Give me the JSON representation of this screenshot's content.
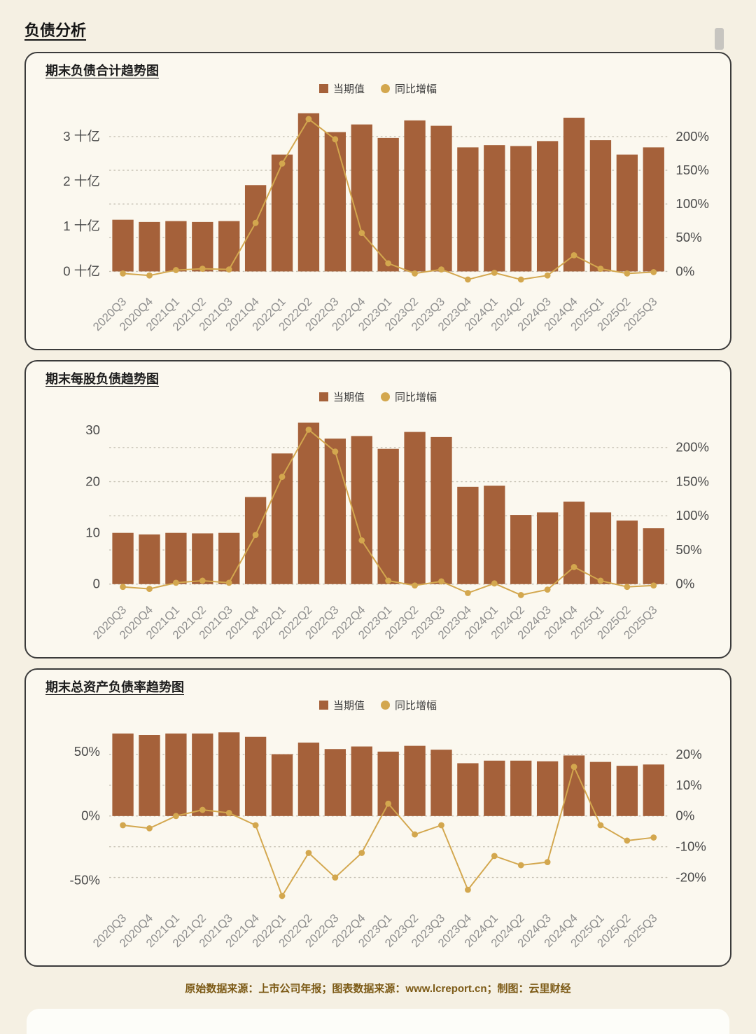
{
  "page": {
    "title": "负债分析",
    "footer": "原始数据来源：上市公司年报；图表数据来源：www.lcreport.cn；制图：云里财经"
  },
  "colors": {
    "bar": "#a5613a",
    "line": "#d3a74e",
    "grid": "#c6c1b4",
    "axis_text": "#4a4a4a",
    "category_text": "#8f8f8f",
    "page_bg": "#f5f0e3",
    "panel_bg": "#fbf8ef",
    "panel_border": "#3b3b3b"
  },
  "chart_data": [
    {
      "type": "bar",
      "subtype": "bar+line-dual-axis",
      "title": "期末负债合计趋势图",
      "grid": "dotted-horizontal",
      "legend_position": "top-center",
      "categories": [
        "2020Q3",
        "2020Q4",
        "2021Q1",
        "2021Q2",
        "2021Q3",
        "2021Q4",
        "2022Q1",
        "2022Q2",
        "2022Q3",
        "2022Q4",
        "2023Q1",
        "2023Q2",
        "2023Q3",
        "2023Q4",
        "2024Q1",
        "2024Q2",
        "2024Q3",
        "2024Q4",
        "2025Q1",
        "2025Q2",
        "2025Q3"
      ],
      "series": [
        {
          "name": "当期值",
          "type": "bar",
          "axis": "left",
          "unit": "十亿",
          "values": [
            1.15,
            1.1,
            1.12,
            1.1,
            1.12,
            1.92,
            2.6,
            3.52,
            3.1,
            3.27,
            2.97,
            3.36,
            3.24,
            2.76,
            2.81,
            2.79,
            2.9,
            3.42,
            2.92,
            2.6,
            2.76
          ]
        },
        {
          "name": "同比增幅",
          "type": "line",
          "axis": "right",
          "unit": "%",
          "values": [
            -3,
            -6,
            2,
            4,
            3,
            72,
            160,
            226,
            196,
            57,
            12,
            -3,
            3,
            -12,
            -2,
            -12,
            -6,
            24,
            4,
            -3,
            -1
          ]
        }
      ],
      "left_axis": {
        "unit": "十亿",
        "range": [
          -0.35,
          3.72
        ],
        "ticks": [
          {
            "value": 0,
            "label": "0 十亿"
          },
          {
            "value": 1,
            "label": "1 十亿"
          },
          {
            "value": 2,
            "label": "2 十亿"
          },
          {
            "value": 3,
            "label": "3 十亿"
          }
        ]
      },
      "right_axis": {
        "unit": "%",
        "range": [
          -23.3,
          248.0
        ],
        "ticks": [
          {
            "value": 0,
            "label": "0%"
          },
          {
            "value": 50,
            "label": "50%"
          },
          {
            "value": 100,
            "label": "100%"
          },
          {
            "value": 150,
            "label": "150%"
          },
          {
            "value": 200,
            "label": "200%"
          }
        ]
      }
    },
    {
      "type": "bar",
      "subtype": "bar+line-dual-axis",
      "title": "期末每股负债趋势图",
      "grid": "dotted-horizontal",
      "legend_position": "top-center",
      "categories": [
        "2020Q3",
        "2020Q4",
        "2021Q1",
        "2021Q2",
        "2021Q3",
        "2021Q4",
        "2022Q1",
        "2022Q2",
        "2022Q3",
        "2022Q4",
        "2023Q1",
        "2023Q2",
        "2023Q3",
        "2023Q4",
        "2024Q1",
        "2024Q2",
        "2024Q3",
        "2024Q4",
        "2025Q1",
        "2025Q2",
        "2025Q3"
      ],
      "series": [
        {
          "name": "当期值",
          "type": "bar",
          "axis": "left",
          "unit": "",
          "values": [
            10.0,
            9.7,
            10.0,
            9.9,
            10.0,
            17.0,
            25.5,
            31.5,
            28.4,
            28.9,
            26.4,
            29.7,
            28.7,
            19.0,
            19.2,
            13.5,
            14.0,
            16.1,
            14.0,
            12.4,
            10.9
          ]
        },
        {
          "name": "同比增幅",
          "type": "line",
          "axis": "right",
          "unit": "%",
          "values": [
            -4,
            -7,
            2,
            5,
            2,
            72,
            157,
            226,
            194,
            64,
            5,
            -2,
            4,
            -13,
            1,
            -16,
            -8,
            25,
            5,
            -4,
            -2
          ]
        }
      ],
      "left_axis": {
        "unit": "",
        "range": [
          -2.2,
          33.5
        ],
        "ticks": [
          {
            "value": 0,
            "label": "0"
          },
          {
            "value": 10,
            "label": "10"
          },
          {
            "value": 20,
            "label": "20"
          },
          {
            "value": 30,
            "label": "30"
          }
        ]
      },
      "right_axis": {
        "unit": "%",
        "range": [
          -16.5,
          251.25
        ],
        "ticks": [
          {
            "value": 0,
            "label": "0%"
          },
          {
            "value": 50,
            "label": "50%"
          },
          {
            "value": 100,
            "label": "100%"
          },
          {
            "value": 150,
            "label": "150%"
          },
          {
            "value": 200,
            "label": "200%"
          }
        ]
      }
    },
    {
      "type": "bar",
      "subtype": "bar+line-dual-axis",
      "title": "期末总资产负债率趋势图",
      "grid": "dotted-horizontal",
      "legend_position": "top-center",
      "categories": [
        "2020Q3",
        "2020Q4",
        "2021Q1",
        "2021Q2",
        "2021Q3",
        "2021Q4",
        "2022Q1",
        "2022Q2",
        "2022Q3",
        "2022Q4",
        "2023Q1",
        "2023Q2",
        "2023Q3",
        "2023Q4",
        "2024Q1",
        "2024Q2",
        "2024Q3",
        "2024Q4",
        "2025Q1",
        "2025Q2",
        "2025Q3"
      ],
      "series": [
        {
          "name": "当期值",
          "type": "bar",
          "axis": "left",
          "unit": "%",
          "values": [
            64,
            63,
            64,
            64,
            65,
            61.5,
            48,
            57,
            52,
            54,
            50,
            54.5,
            51.5,
            41,
            43,
            43,
            42.5,
            47,
            42,
            39,
            40
          ]
        },
        {
          "name": "同比增幅",
          "type": "line",
          "axis": "right",
          "unit": "%",
          "values": [
            -3,
            -4,
            0,
            2,
            1,
            -3,
            -26,
            -12,
            -20,
            -12,
            4,
            -6,
            -3,
            -24,
            -13,
            -16,
            -15,
            16,
            -3,
            -8,
            -7
          ]
        }
      ],
      "left_axis": {
        "unit": "%",
        "range": [
          -68,
          74
        ],
        "ticks": [
          {
            "value": -50,
            "label": "-50%"
          },
          {
            "value": 0,
            "label": "0%"
          },
          {
            "value": 50,
            "label": "50%"
          }
        ]
      },
      "right_axis": {
        "unit": "%",
        "range": [
          -28.5,
          31.0
        ],
        "ticks": [
          {
            "value": -20,
            "label": "-20%"
          },
          {
            "value": -10,
            "label": "-10%"
          },
          {
            "value": 0,
            "label": "0%"
          },
          {
            "value": 10,
            "label": "10%"
          },
          {
            "value": 20,
            "label": "20%"
          }
        ]
      }
    }
  ]
}
